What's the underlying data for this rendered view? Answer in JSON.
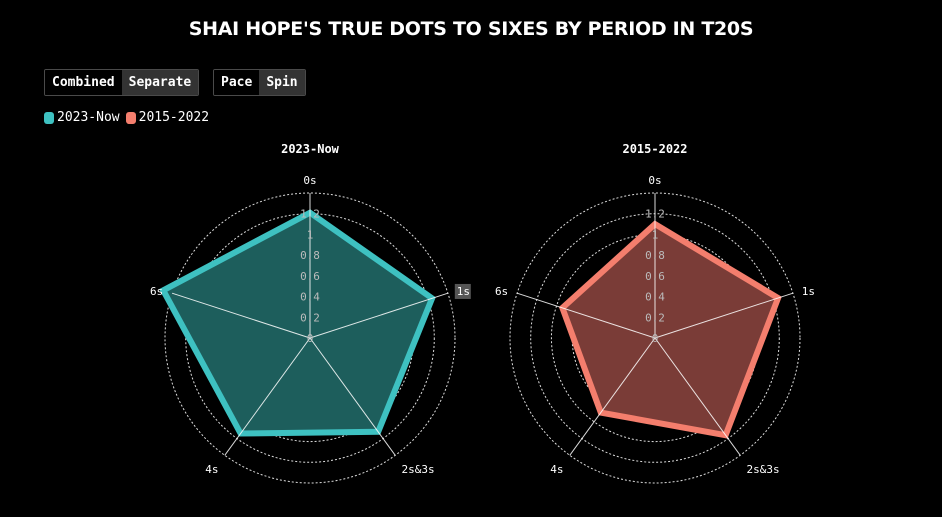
{
  "title": "SHAI HOPE'S TRUE DOTS TO SIXES BY PERIOD IN T20S",
  "toggles": {
    "mode": {
      "options": [
        "Combined",
        "Separate"
      ],
      "active": "Separate"
    },
    "bowling": {
      "options": [
        "Pace",
        "Spin"
      ],
      "active": "Spin"
    }
  },
  "legend": [
    {
      "label": "2023-Now",
      "color": "#3EC1C1"
    },
    {
      "label": "2015-2022",
      "color": "#F47E6D"
    }
  ],
  "chart_data": [
    {
      "type": "radar",
      "title": "2023-Now",
      "axes": [
        "0s",
        "1s",
        "2s&3s",
        "4s",
        "6s"
      ],
      "highlighted_axis": "1s",
      "rings": [
        0,
        0.2,
        0.4,
        0.6,
        0.8,
        1,
        1.2
      ],
      "range": [
        0,
        1.4
      ],
      "series": [
        {
          "name": "2023-Now",
          "values": [
            1.21,
            1.24,
            1.12,
            1.14,
            1.49
          ]
        }
      ],
      "stroke_color": "#3EC1C1",
      "fill_color": "#1D5E5C"
    },
    {
      "type": "radar",
      "title": "2015-2022",
      "axes": [
        "0s",
        "1s",
        "2s&3s",
        "4s",
        "6s"
      ],
      "highlighted_axis": "",
      "rings": [
        0,
        0.2,
        0.4,
        0.6,
        0.8,
        1,
        1.2
      ],
      "range": [
        0,
        1.4
      ],
      "series": [
        {
          "name": "2015-2022",
          "values": [
            1.1,
            1.25,
            1.16,
            0.89,
            0.94
          ]
        }
      ],
      "stroke_color": "#F47E6D",
      "fill_color": "#7A3C37"
    }
  ]
}
